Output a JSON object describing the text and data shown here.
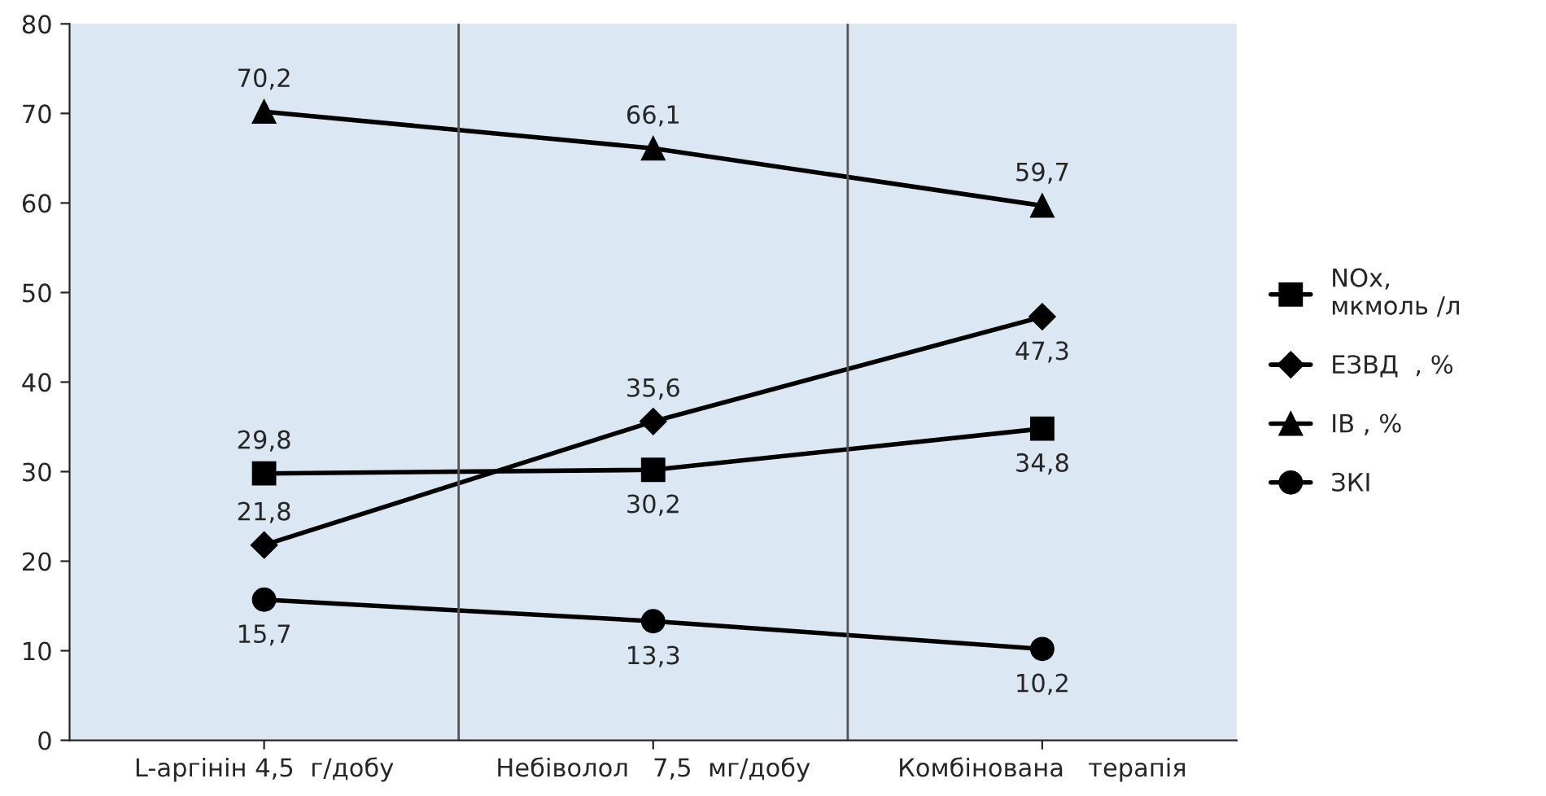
{
  "chart_data": {
    "type": "line",
    "categories": [
      "L-аргінін 4,5  г/добу",
      "Небіволол   7,5  мг/добу",
      "Комбінована   терапія"
    ],
    "series": [
      {
        "name": "NOx,\nмкмоль /л",
        "color": "#000000",
        "marker": "square",
        "values": [
          29.8,
          30.2,
          34.8
        ],
        "value_labels": [
          "29,8",
          "30,2",
          "34,8"
        ]
      },
      {
        "name": "ЕЗВД  , %",
        "color": "#000000",
        "marker": "diamond",
        "values": [
          21.8,
          35.6,
          47.3
        ],
        "value_labels": [
          "21,8",
          "35,6",
          "47,3"
        ]
      },
      {
        "name": "ІВ , %",
        "color": "#000000",
        "marker": "triangle",
        "values": [
          70.2,
          66.1,
          59.7
        ],
        "value_labels": [
          "70,2",
          "66,1",
          "59,7"
        ]
      },
      {
        "name": "ЗКІ",
        "color": "#000000",
        "marker": "circle",
        "values": [
          15.7,
          13.3,
          10.2
        ],
        "value_labels": [
          "15,7",
          "13,3",
          "10,2"
        ]
      }
    ],
    "ylim": [
      0,
      80
    ],
    "yticks": [
      0,
      10,
      20,
      30,
      40,
      50,
      60,
      70,
      80
    ],
    "grid": "x",
    "legend": "right",
    "line_style": "solid"
  }
}
